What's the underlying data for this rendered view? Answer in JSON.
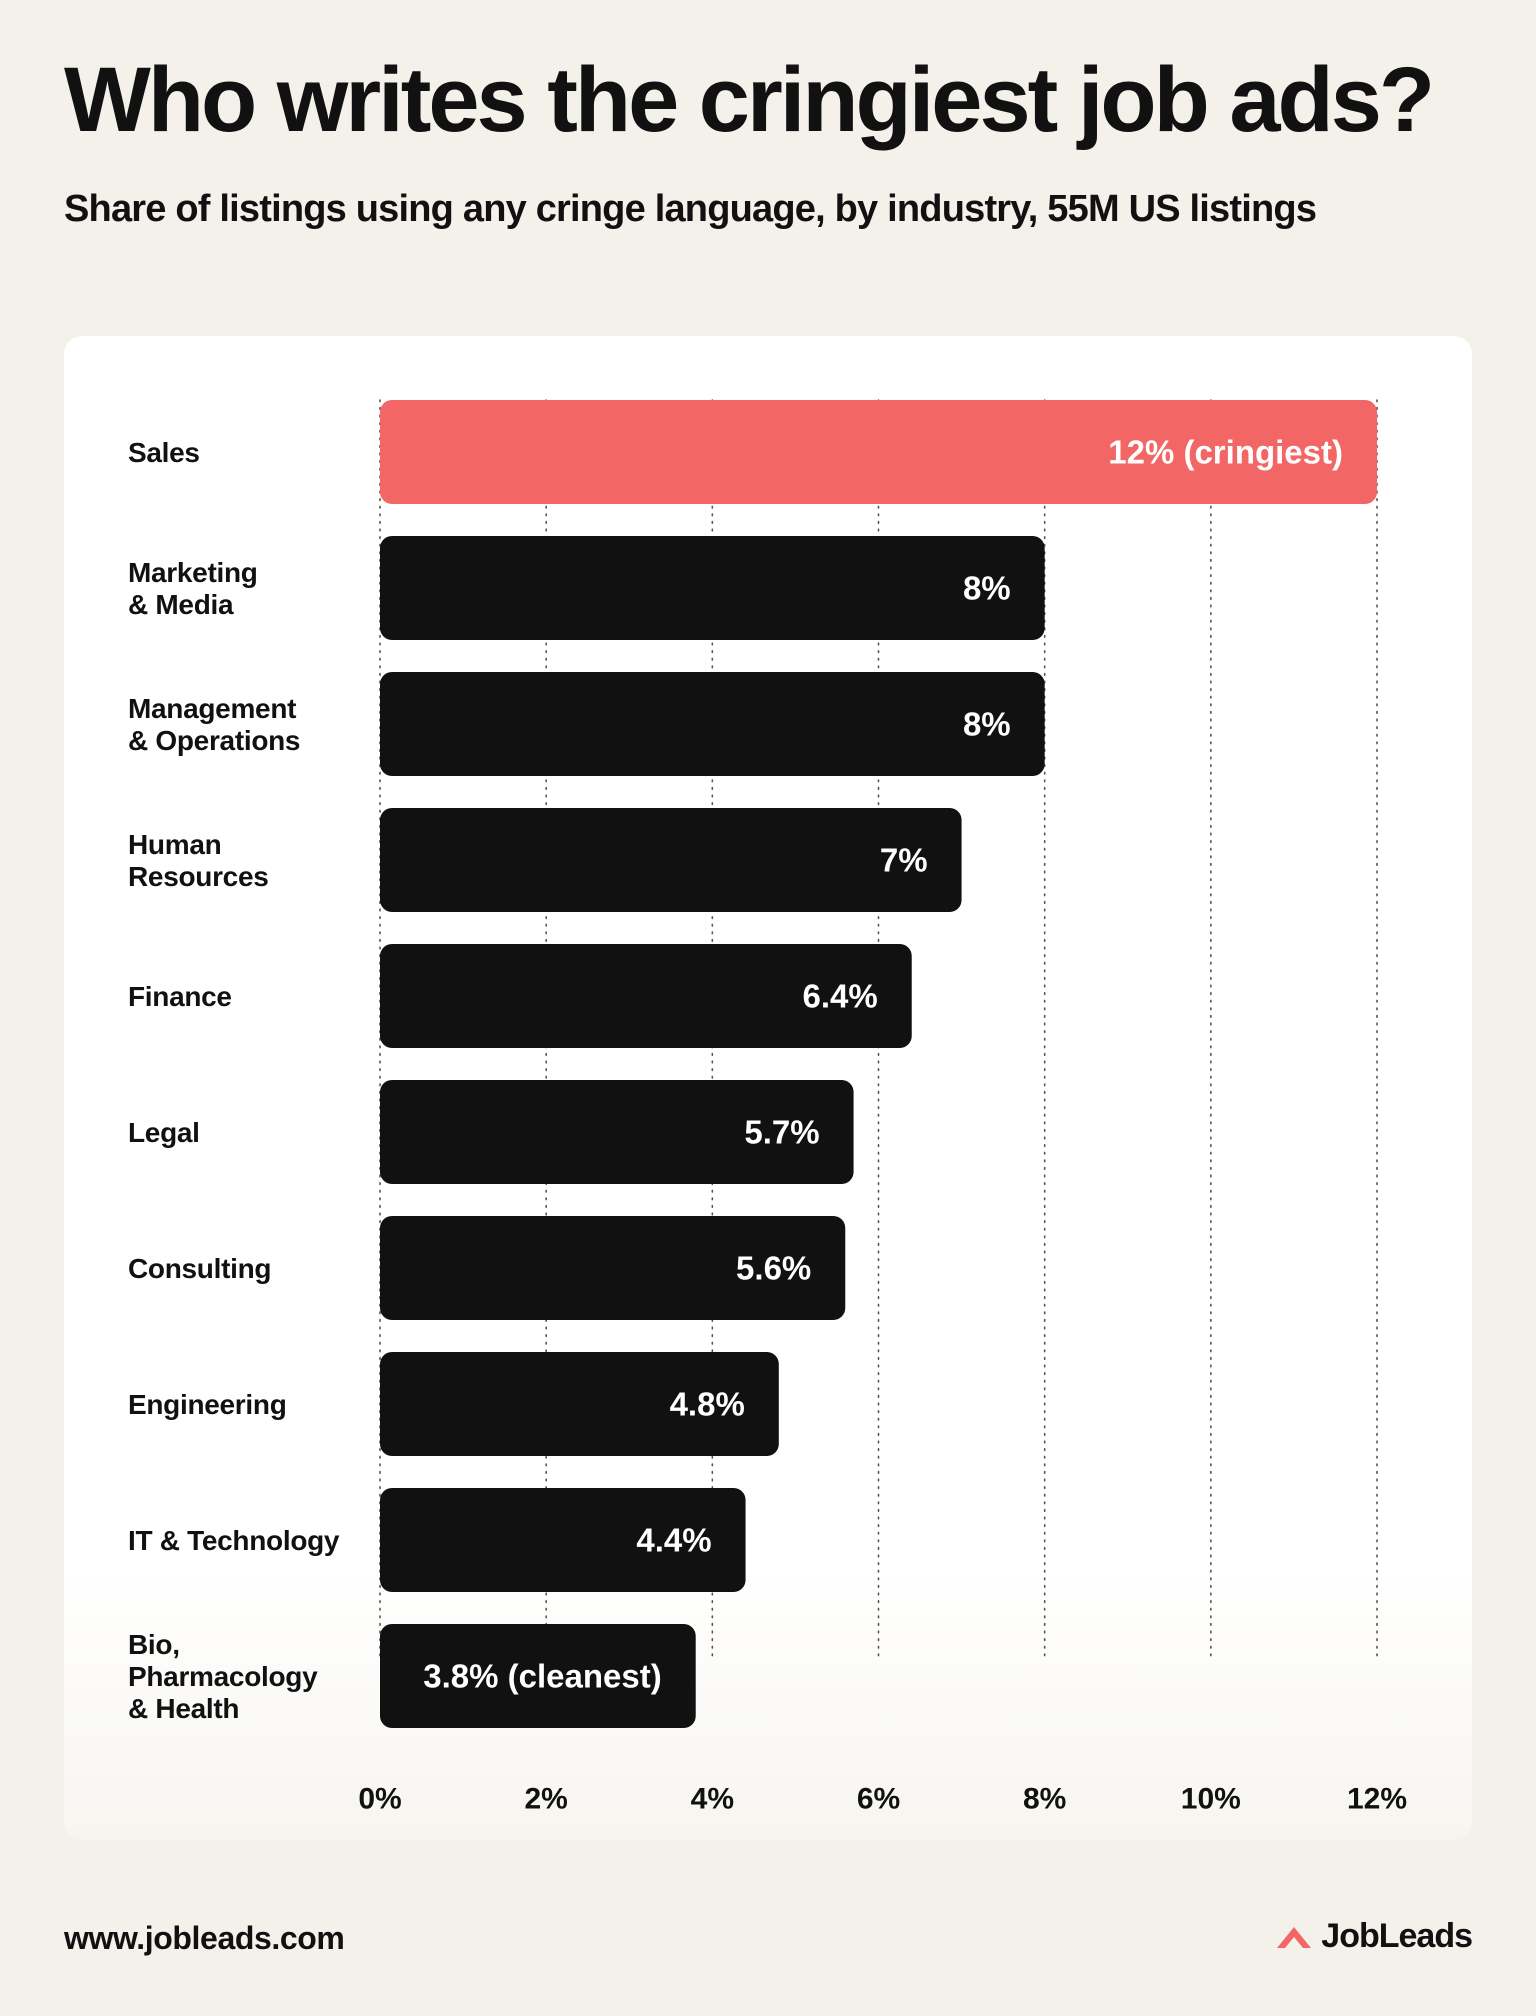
{
  "colors": {
    "background": "#f4f1eb",
    "card": "#ffffff",
    "bar": "#111111",
    "highlight": "#f26666",
    "bar_label": "#ffffff",
    "text": "#111111"
  },
  "footer": {
    "url": "www.jobleads.com",
    "brand_name": "JobLeads",
    "brand_icon": "jobleads-logo-icon"
  },
  "chart_data": {
    "type": "bar",
    "orientation": "horizontal",
    "title": "Who writes the cringiest job ads?",
    "subtitle": "Share of listings using any cringe language, by industry, 55M US listings",
    "categories": [
      [
        "Sales"
      ],
      [
        "Marketing",
        "& Media"
      ],
      [
        "Management",
        "& Operations"
      ],
      [
        "Human",
        "Resources"
      ],
      [
        "Finance"
      ],
      [
        "Legal"
      ],
      [
        "Consulting"
      ],
      [
        "Engineering"
      ],
      [
        "IT & Technology"
      ],
      [
        "Bio,",
        "Pharmacology",
        "& Health"
      ]
    ],
    "values": [
      12,
      8,
      8,
      7,
      6.4,
      5.7,
      5.6,
      4.8,
      4.4,
      3.8
    ],
    "data_labels": [
      "12% (cringiest)",
      "8%",
      "8%",
      "7%",
      "6.4%",
      "5.7%",
      "5.6%",
      "4.8%",
      "4.4%",
      "3.8% (cleanest)"
    ],
    "highlight": "Sales",
    "xlim": [
      0,
      12
    ],
    "xticks": [
      0,
      2,
      4,
      6,
      8,
      10,
      12
    ],
    "xtick_labels": [
      "0%",
      "2%",
      "4%",
      "6%",
      "8%",
      "10%",
      "12%"
    ],
    "grid": "vertical dotted",
    "legend": "none"
  }
}
